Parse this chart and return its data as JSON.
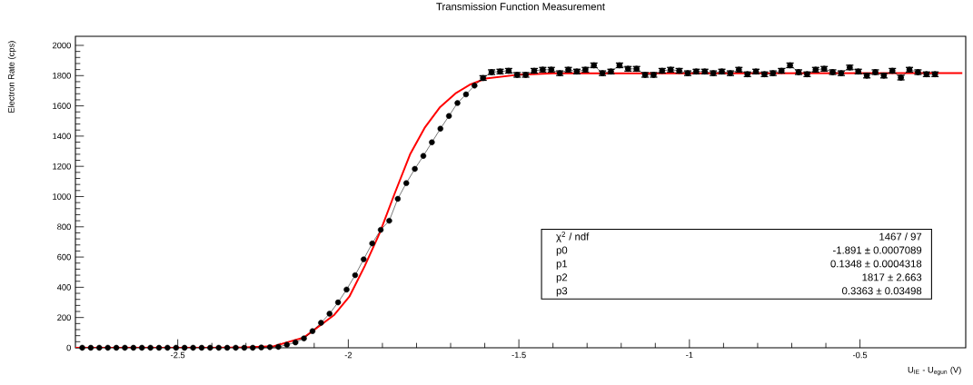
{
  "chart_data": {
    "type": "line",
    "title": "Transmission Function Measurement",
    "xlabel": "U$_{IE}$ - U$_{egun}$ (V)",
    "ylabel": "Electron Rate (cps)",
    "xlim": [
      -2.8,
      -0.19
    ],
    "ylim": [
      0,
      2060
    ],
    "xticks": [
      -2.5,
      -2,
      -1.5,
      -1,
      -0.5
    ],
    "yticks": [
      0,
      200,
      400,
      600,
      800,
      1000,
      1200,
      1400,
      1600,
      1800,
      2000
    ],
    "grid": false,
    "legend": false,
    "series": [
      {
        "marker": "circle",
        "color": "#000000",
        "x": [
          -2.78,
          -2.755,
          -2.73,
          -2.705,
          -2.68,
          -2.655,
          -2.63,
          -2.605,
          -2.58,
          -2.555,
          -2.53,
          -2.505,
          -2.48,
          -2.455,
          -2.43,
          -2.405,
          -2.38,
          -2.355,
          -2.33,
          -2.305,
          -2.28,
          -2.255,
          -2.23,
          -2.205,
          -2.18,
          -2.155,
          -2.13,
          -2.105,
          -2.08,
          -2.055,
          -2.03,
          -2.005,
          -1.98,
          -1.955,
          -1.93,
          -1.905,
          -1.88,
          -1.855,
          -1.83,
          -1.805,
          -1.78,
          -1.755,
          -1.73,
          -1.705,
          -1.68,
          -1.655,
          -1.63,
          -1.605,
          -1.58,
          -1.555,
          -1.53,
          -1.505,
          -1.48,
          -1.455,
          -1.43,
          -1.405,
          -1.38,
          -1.355,
          -1.33,
          -1.305,
          -1.28,
          -1.255,
          -1.23,
          -1.205,
          -1.18,
          -1.155,
          -1.13,
          -1.105,
          -1.08,
          -1.055,
          -1.03,
          -1.005,
          -0.98,
          -0.955,
          -0.93,
          -0.905,
          -0.88,
          -0.855,
          -0.83,
          -0.805,
          -0.78,
          -0.755,
          -0.73,
          -0.705,
          -0.68,
          -0.655,
          -0.63,
          -0.605,
          -0.58,
          -0.555,
          -0.53,
          -0.505,
          -0.48,
          -0.455,
          -0.43,
          -0.405,
          -0.38,
          -0.355,
          -0.33,
          -0.305,
          -0.28
        ],
        "values": [
          0,
          0,
          0,
          0,
          0,
          0,
          0,
          0,
          0,
          0,
          0,
          0,
          0,
          0,
          0,
          0,
          0,
          0,
          0,
          0,
          0,
          2,
          4,
          6,
          20,
          35,
          62,
          110,
          165,
          225,
          300,
          385,
          480,
          585,
          690,
          780,
          840,
          985,
          1089,
          1183,
          1269,
          1359,
          1449,
          1533,
          1619,
          1676,
          1734,
          1784,
          1823,
          1827,
          1832,
          1805,
          1805,
          1832,
          1839,
          1839,
          1816,
          1839,
          1827,
          1839,
          1868,
          1816,
          1827,
          1868,
          1845,
          1845,
          1805,
          1805,
          1832,
          1839,
          1832,
          1816,
          1827,
          1827,
          1816,
          1827,
          1816,
          1839,
          1809,
          1827,
          1809,
          1816,
          1832,
          1868,
          1823,
          1809,
          1839,
          1845,
          1823,
          1816,
          1854,
          1827,
          1800,
          1823,
          1800,
          1832,
          1787,
          1839,
          1823,
          1809,
          1809
        ],
        "errors": [
          null,
          null,
          null,
          null,
          null,
          null,
          null,
          null,
          null,
          null,
          null,
          null,
          null,
          null,
          null,
          null,
          null,
          null,
          null,
          null,
          null,
          null,
          null,
          null,
          null,
          null,
          null,
          null,
          null,
          null,
          null,
          null,
          null,
          null,
          null,
          null,
          null,
          null,
          null,
          null,
          null,
          null,
          null,
          null,
          null,
          null,
          null,
          15,
          15,
          15,
          15,
          15,
          15,
          15,
          15,
          15,
          15,
          15,
          15,
          15,
          15,
          15,
          15,
          15,
          15,
          15,
          15,
          15,
          15,
          15,
          15,
          15,
          15,
          15,
          15,
          15,
          15,
          15,
          15,
          15,
          15,
          15,
          15,
          15,
          15,
          15,
          15,
          15,
          15,
          15,
          15,
          15,
          15,
          15,
          15,
          15,
          15,
          15,
          15,
          15,
          15
        ]
      },
      {
        "marker": "none",
        "color": "#ff0000",
        "x": [
          -2.8,
          -2.4,
          -2.3,
          -2.218,
          -2.13,
          -2.041,
          -1.997,
          -1.952,
          -1.908,
          -1.864,
          -1.819,
          -1.775,
          -1.731,
          -1.686,
          -1.642,
          -1.598,
          -1.509,
          -1.4,
          -0.2
        ],
        "values": [
          0,
          0,
          3,
          10,
          68,
          218,
          338,
          540,
          759,
          1021,
          1279,
          1459,
          1592,
          1682,
          1742,
          1780,
          1804,
          1815,
          1817
        ]
      }
    ],
    "annotations": [
      "χ$^{2}$ / ndf",
      "1467 / 97",
      "p0",
      "-1.891 ± 0.0007089",
      "p1",
      "0.1348 ± 0.0004318",
      "p2",
      "1817 ± 2.663",
      "p3",
      "0.3363 ± 0.03498"
    ]
  }
}
